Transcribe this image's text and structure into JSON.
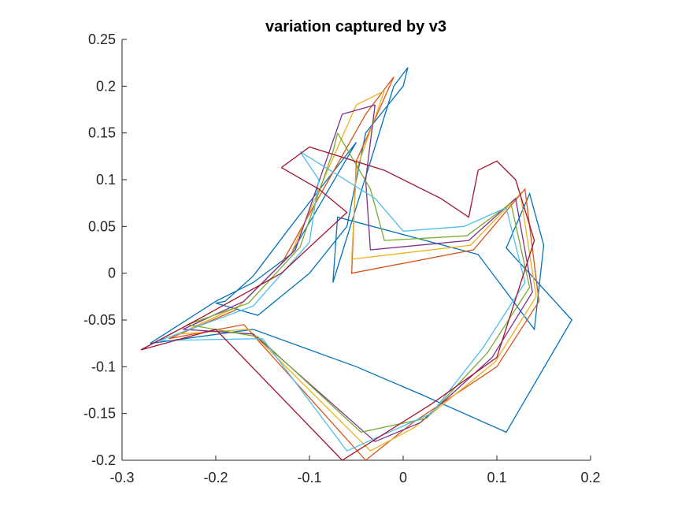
{
  "chart_data": {
    "type": "line",
    "title": "variation captured by v3",
    "xlabel": "",
    "ylabel": "",
    "xlim": [
      -0.3,
      0.2
    ],
    "ylim": [
      -0.2,
      0.25
    ],
    "xticks": [
      -0.3,
      -0.2,
      -0.1,
      0,
      0.1,
      0.2
    ],
    "xtick_labels": [
      "-0.3",
      "-0.2",
      "-0.1",
      "0",
      "0.1",
      "0.2"
    ],
    "yticks": [
      -0.2,
      -0.15,
      -0.1,
      -0.05,
      0,
      0.05,
      0.1,
      0.15,
      0.2,
      0.25
    ],
    "ytick_labels": [
      "-0.2",
      "-0.15",
      "-0.1",
      "-0.05",
      "0",
      "0.05",
      "0.1",
      "0.15",
      "0.2",
      "0.25"
    ],
    "grid": false,
    "legend": "none",
    "colors": [
      "#0072BD",
      "#D95319",
      "#EDB120",
      "#7E2F8E",
      "#77AC30",
      "#4DBEEE",
      "#A2142F"
    ],
    "series": [
      {
        "color": "#0072BD",
        "x": [
          0.005,
          -0.01,
          -0.075,
          -0.07,
          0.08,
          0.14,
          0.15,
          0.135,
          0.11,
          0.18,
          0.11,
          0.02,
          -0.05,
          -0.16,
          -0.27,
          -0.2,
          -0.16,
          -0.12,
          -0.05,
          -0.12,
          -0.16,
          -0.19,
          -0.2,
          -0.155,
          -0.1,
          -0.06,
          -0.04,
          0.0,
          0.005
        ],
        "y": [
          0.22,
          0.2,
          -0.01,
          0.06,
          0.02,
          -0.06,
          0.03,
          0.085,
          0.027,
          -0.05,
          -0.17,
          -0.13,
          -0.1,
          -0.06,
          -0.075,
          -0.03,
          -0.01,
          0.02,
          0.14,
          0.05,
          -0.003,
          -0.03,
          -0.032,
          -0.045,
          0.0,
          0.05,
          0.15,
          0.2,
          0.22
        ]
      },
      {
        "color": "#D95319",
        "x": [
          -0.01,
          -0.05,
          -0.055,
          0.075,
          0.13,
          0.145,
          0.1,
          0.01,
          -0.04,
          -0.17,
          -0.25,
          -0.18,
          -0.13,
          -0.04,
          -0.01
        ],
        "y": [
          0.21,
          0.12,
          0.0,
          0.025,
          0.09,
          -0.03,
          -0.1,
          -0.16,
          -0.2,
          -0.055,
          -0.07,
          -0.04,
          0.01,
          0.17,
          0.21
        ]
      },
      {
        "color": "#EDB120",
        "x": [
          -0.02,
          -0.05,
          -0.055,
          0.072,
          0.125,
          0.142,
          0.098,
          0.012,
          -0.035,
          -0.165,
          -0.24,
          -0.175,
          -0.12,
          -0.05,
          -0.02
        ],
        "y": [
          0.195,
          0.11,
          0.015,
          0.03,
          0.085,
          -0.025,
          -0.095,
          -0.165,
          -0.19,
          -0.06,
          -0.065,
          -0.035,
          0.02,
          0.18,
          0.195
        ]
      },
      {
        "color": "#7E2F8E",
        "x": [
          -0.03,
          -0.04,
          -0.035,
          0.07,
          0.12,
          0.138,
          0.095,
          0.018,
          -0.03,
          -0.16,
          -0.235,
          -0.17,
          -0.115,
          -0.065,
          -0.03
        ],
        "y": [
          0.18,
          0.1,
          0.025,
          0.035,
          0.08,
          -0.02,
          -0.09,
          -0.16,
          -0.18,
          -0.065,
          -0.06,
          -0.03,
          0.025,
          0.17,
          0.18
        ]
      },
      {
        "color": "#77AC30",
        "x": [
          -0.07,
          -0.035,
          -0.02,
          0.068,
          0.115,
          0.135,
          0.09,
          0.025,
          -0.045,
          -0.155,
          -0.23,
          -0.165,
          -0.11,
          -0.075,
          -0.07
        ],
        "y": [
          0.15,
          0.09,
          0.035,
          0.04,
          0.075,
          -0.015,
          -0.085,
          -0.155,
          -0.17,
          -0.068,
          -0.055,
          -0.032,
          0.028,
          0.13,
          0.15
        ]
      },
      {
        "color": "#4DBEEE",
        "x": [
          -0.11,
          -0.03,
          0.0,
          0.065,
          0.11,
          0.13,
          0.085,
          0.03,
          -0.06,
          -0.15,
          -0.26,
          -0.16,
          -0.1,
          -0.09,
          -0.11
        ],
        "y": [
          0.13,
          0.08,
          0.045,
          0.05,
          0.07,
          -0.01,
          -0.08,
          -0.15,
          -0.19,
          -0.07,
          -0.072,
          -0.035,
          0.033,
          0.1,
          0.13
        ]
      },
      {
        "color": "#A2142F",
        "x": [
          -0.13,
          -0.1,
          -0.02,
          0.04,
          0.07,
          0.08,
          0.1,
          0.12,
          0.14,
          0.1,
          0.03,
          -0.065,
          -0.2,
          -0.28,
          -0.22,
          -0.13,
          -0.06,
          -0.09,
          -0.13
        ],
        "y": [
          0.113,
          0.135,
          0.11,
          0.08,
          0.06,
          0.11,
          0.12,
          0.1,
          0.035,
          -0.09,
          -0.14,
          -0.2,
          -0.06,
          -0.082,
          -0.05,
          0.0,
          0.065,
          0.09,
          0.113
        ]
      }
    ]
  }
}
